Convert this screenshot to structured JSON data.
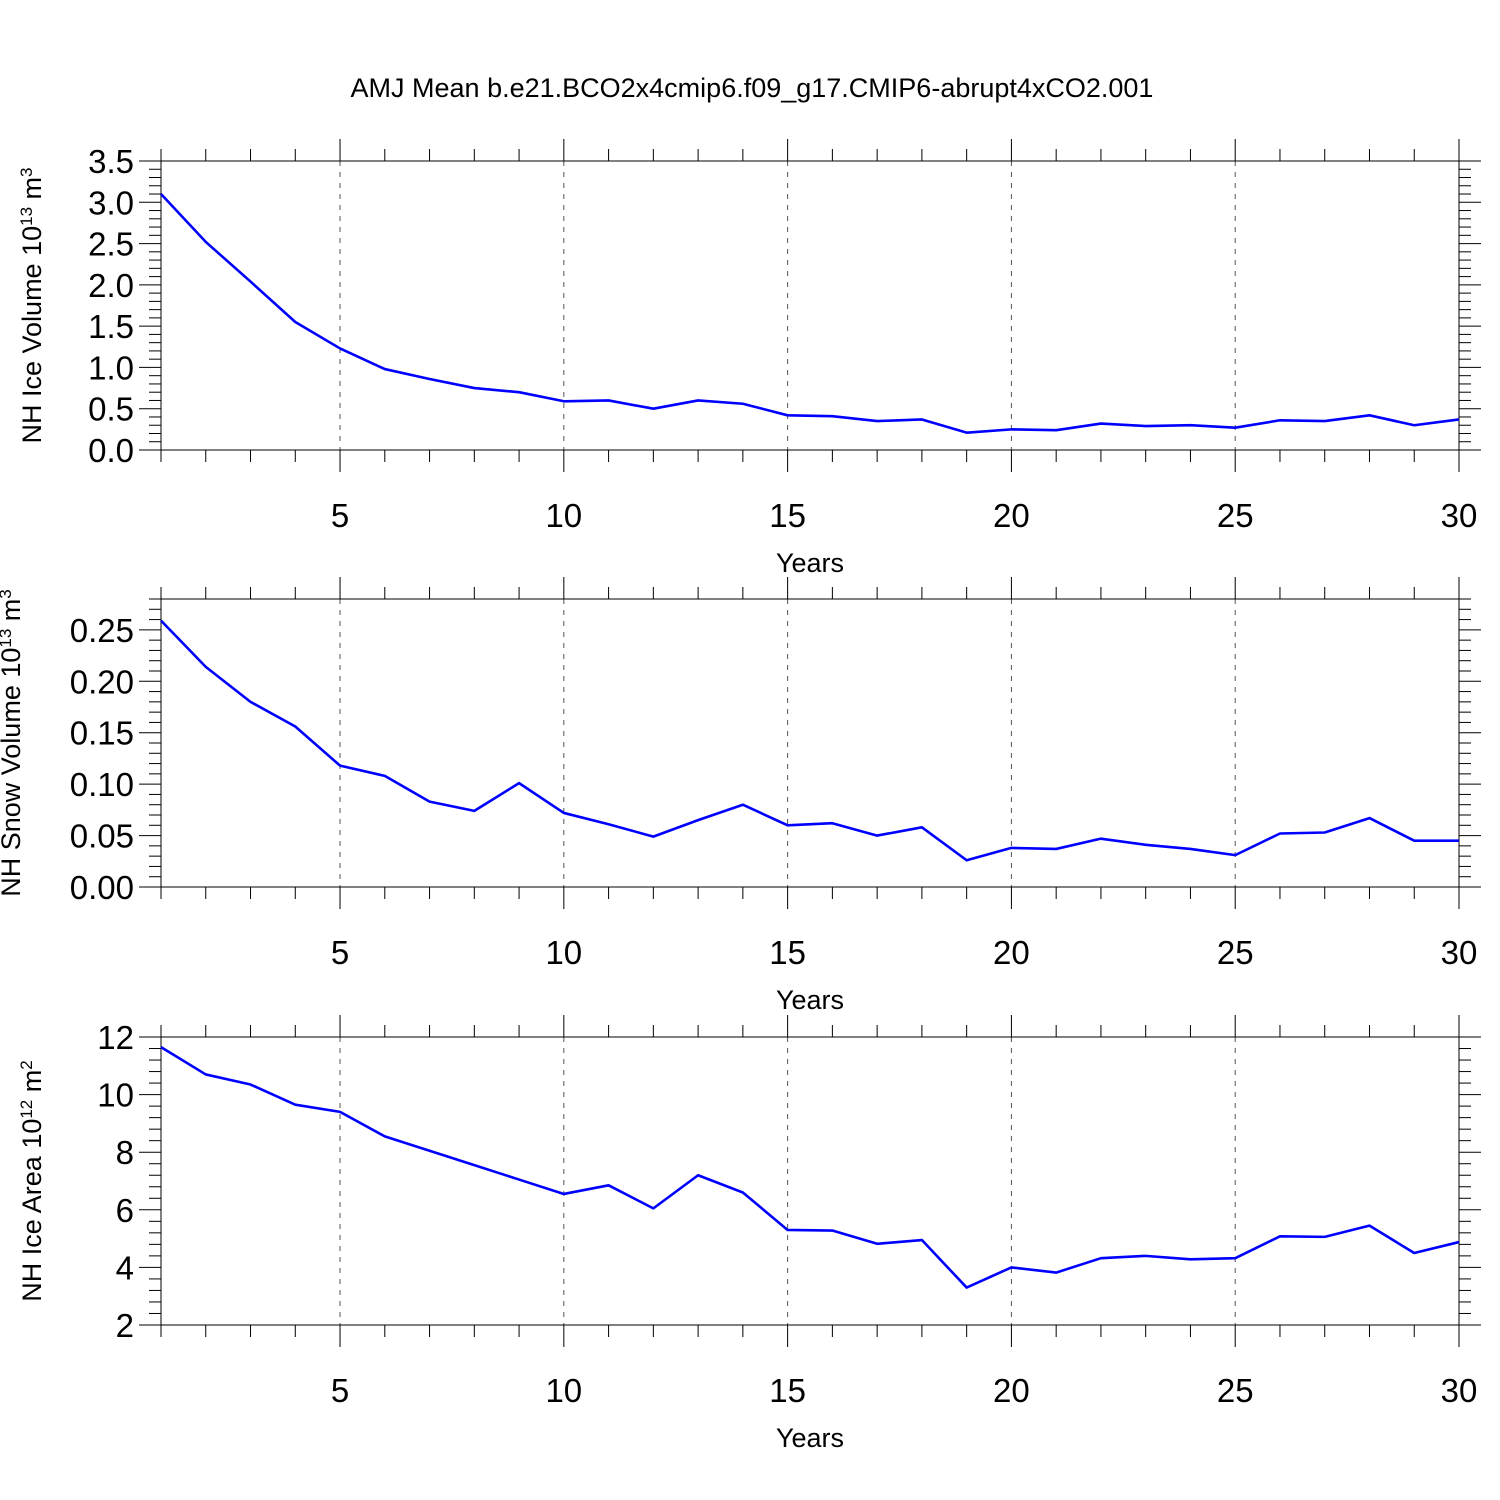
{
  "title": "AMJ Mean b.e21.BCO2x4cmip6.f09_g17.CMIP6-abrupt4xCO2.001",
  "colors": {
    "line": "#0000ff",
    "axis": "#000000",
    "grid": "#555555"
  },
  "chart_data": [
    {
      "type": "line",
      "xlabel": "Years",
      "ylabel": {
        "text": "NH Ice Volume 10",
        "exp": "13",
        "unit": " m",
        "unit_exp": "3"
      },
      "xlim": [
        1,
        30
      ],
      "ylim": [
        0,
        3.5
      ],
      "xticks": [
        5,
        10,
        15,
        20,
        25,
        30
      ],
      "yticks": [
        "0.0",
        "0.5",
        "1.0",
        "1.5",
        "2.0",
        "2.5",
        "3.0",
        "3.5"
      ],
      "grid": "x-dashed",
      "x": [
        1,
        2,
        3,
        4,
        5,
        6,
        7,
        8,
        9,
        10,
        11,
        12,
        13,
        14,
        15,
        16,
        17,
        18,
        19,
        20,
        21,
        22,
        23,
        24,
        25,
        26,
        27,
        28,
        29,
        30
      ],
      "series": [
        {
          "values": [
            3.1,
            2.52,
            2.04,
            1.55,
            1.23,
            0.98,
            0.86,
            0.75,
            0.7,
            0.59,
            0.6,
            0.5,
            0.6,
            0.56,
            0.42,
            0.41,
            0.35,
            0.37,
            0.21,
            0.25,
            0.24,
            0.32,
            0.29,
            0.3,
            0.27,
            0.36,
            0.35,
            0.42,
            0.3,
            0.37
          ]
        }
      ]
    },
    {
      "type": "line",
      "xlabel": "Years",
      "ylabel": {
        "text": "NH Snow Volume 10",
        "exp": "13",
        "unit": " m",
        "unit_exp": "3"
      },
      "xlim": [
        1,
        30
      ],
      "ylim": [
        0,
        0.28
      ],
      "xticks": [
        5,
        10,
        15,
        20,
        25,
        30
      ],
      "yticks": [
        "0.00",
        "0.05",
        "0.10",
        "0.15",
        "0.20",
        "0.25"
      ],
      "grid": "x-dashed",
      "x": [
        1,
        2,
        3,
        4,
        5,
        6,
        7,
        8,
        9,
        10,
        11,
        12,
        13,
        14,
        15,
        16,
        17,
        18,
        19,
        20,
        21,
        22,
        23,
        24,
        25,
        26,
        27,
        28,
        29,
        30
      ],
      "series": [
        {
          "values": [
            0.259,
            0.214,
            0.18,
            0.156,
            0.118,
            0.108,
            0.083,
            0.074,
            0.101,
            0.072,
            0.061,
            0.049,
            0.065,
            0.08,
            0.06,
            0.062,
            0.05,
            0.058,
            0.026,
            0.038,
            0.037,
            0.047,
            0.041,
            0.037,
            0.031,
            0.052,
            0.053,
            0.067,
            0.045,
            0.045
          ]
        }
      ]
    },
    {
      "type": "line",
      "xlabel": "Years",
      "ylabel": {
        "text": "NH Ice Area 10",
        "exp": "12",
        "unit": " m",
        "unit_exp": "2"
      },
      "xlim": [
        1,
        30
      ],
      "ylim": [
        2,
        12
      ],
      "xticks": [
        5,
        10,
        15,
        20,
        25,
        30
      ],
      "yticks": [
        "2",
        "4",
        "6",
        "8",
        "10",
        "12"
      ],
      "grid": "x-dashed",
      "x": [
        1,
        2,
        3,
        4,
        5,
        6,
        7,
        8,
        9,
        10,
        11,
        12,
        13,
        14,
        15,
        16,
        17,
        18,
        19,
        20,
        21,
        22,
        23,
        24,
        25,
        26,
        27,
        28,
        29,
        30
      ],
      "series": [
        {
          "values": [
            11.65,
            10.7,
            10.35,
            9.65,
            9.4,
            8.55,
            8.05,
            7.55,
            7.05,
            6.55,
            6.85,
            6.05,
            7.2,
            6.6,
            5.3,
            5.28,
            4.82,
            4.95,
            3.3,
            4.0,
            3.82,
            4.32,
            4.4,
            4.28,
            4.32,
            5.08,
            5.06,
            5.45,
            4.5,
            4.88
          ]
        }
      ]
    }
  ]
}
